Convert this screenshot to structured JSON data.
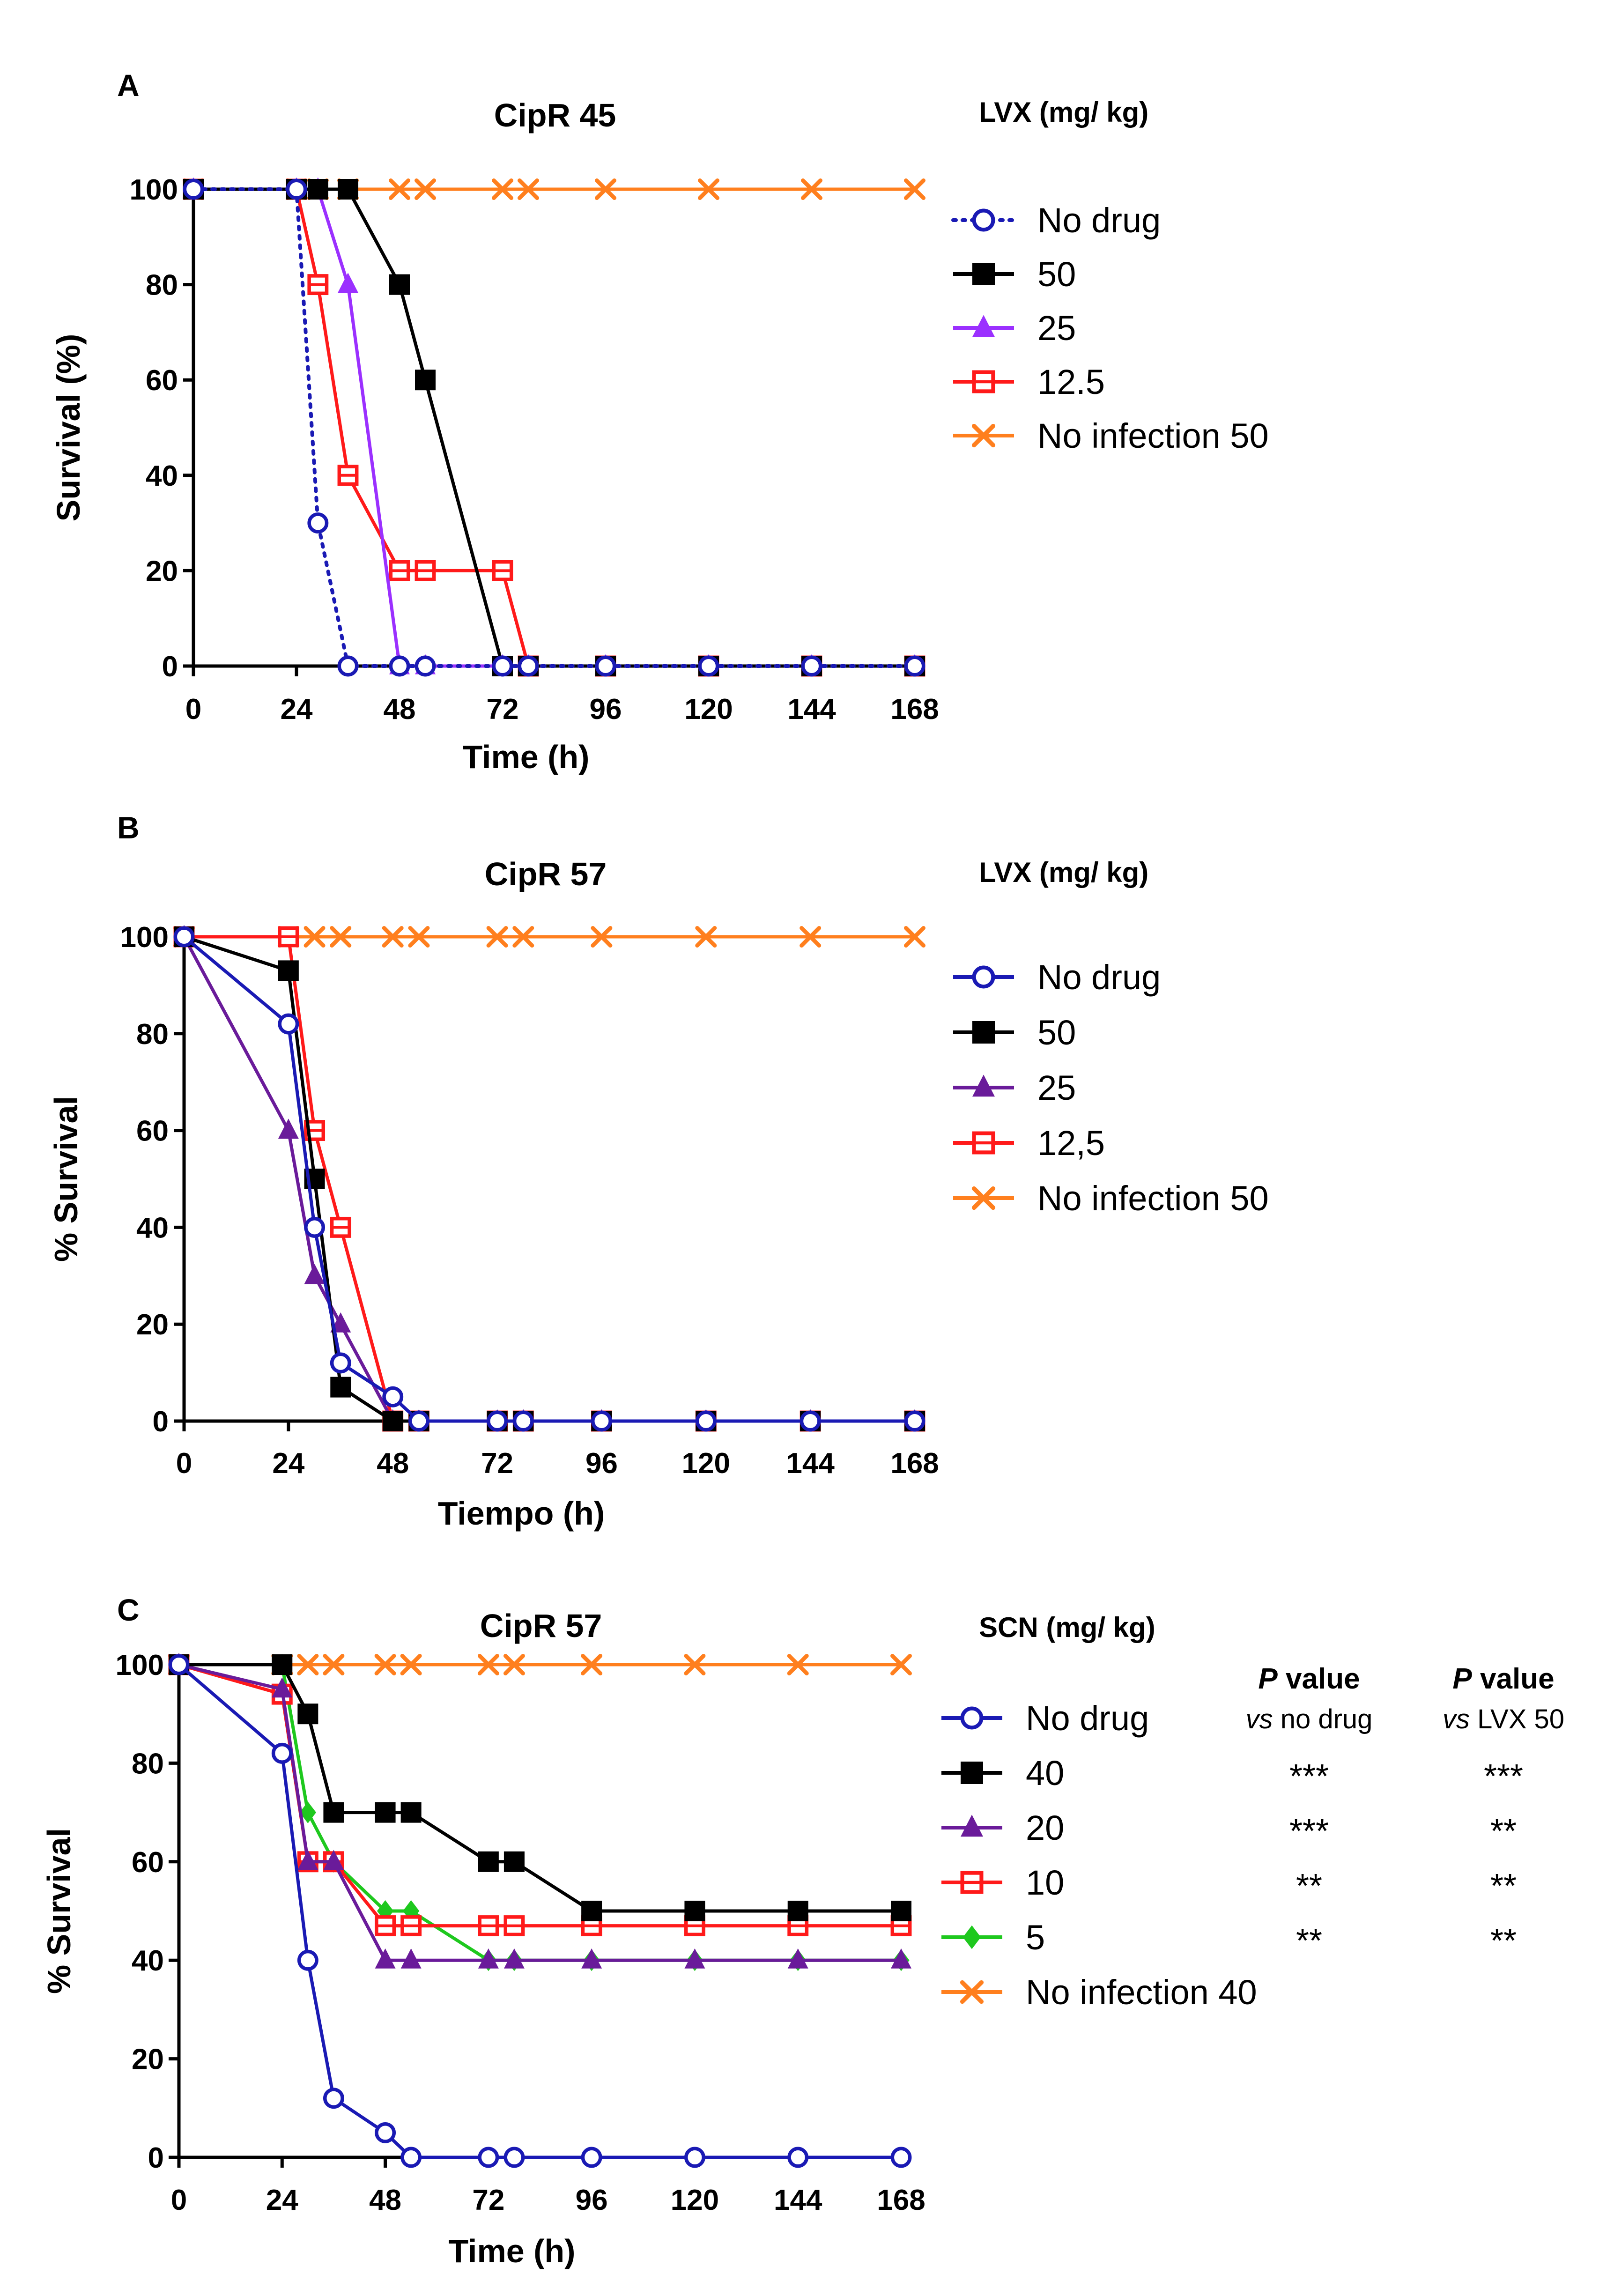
{
  "chart_data": [
    {
      "type": "line",
      "panel_label": "A",
      "title": "CipR 45",
      "xlabel": "Time (h)",
      "ylabel": "Survival (%)",
      "xlim": [
        0,
        168
      ],
      "ylim": [
        0,
        100
      ],
      "x_ticks": [
        0,
        24,
        48,
        72,
        96,
        120,
        144,
        168
      ],
      "y_ticks": [
        0,
        20,
        40,
        60,
        80,
        100
      ],
      "legend_title": "LVX (mg/ kg)",
      "legend_position": "right",
      "series": [
        {
          "name": "No drug",
          "color": "#1a1ab4",
          "marker": "circle-open",
          "line": "dotted",
          "points": [
            [
              0,
              100
            ],
            [
              24,
              100
            ],
            [
              29,
              30
            ],
            [
              36,
              0
            ],
            [
              48,
              0
            ],
            [
              54,
              0
            ],
            [
              72,
              0
            ],
            [
              78,
              0
            ],
            [
              96,
              0
            ],
            [
              120,
              0
            ],
            [
              144,
              0
            ],
            [
              168,
              0
            ]
          ]
        },
        {
          "name": "50",
          "color": "#000000",
          "marker": "square-filled",
          "line": "solid",
          "points": [
            [
              0,
              100
            ],
            [
              24,
              100
            ],
            [
              29,
              100
            ],
            [
              36,
              100
            ],
            [
              48,
              80
            ],
            [
              54,
              60
            ],
            [
              72,
              0
            ],
            [
              78,
              0
            ],
            [
              96,
              0
            ],
            [
              120,
              0
            ],
            [
              144,
              0
            ],
            [
              168,
              0
            ]
          ]
        },
        {
          "name": " 25",
          "color": "#9b30ff",
          "marker": "triangle-filled",
          "line": "solid",
          "points": [
            [
              0,
              100
            ],
            [
              24,
              100
            ],
            [
              29,
              100
            ],
            [
              36,
              80
            ],
            [
              48,
              0
            ],
            [
              54,
              0
            ],
            [
              72,
              0
            ],
            [
              78,
              0
            ],
            [
              96,
              0
            ],
            [
              120,
              0
            ],
            [
              144,
              0
            ],
            [
              168,
              0
            ]
          ]
        },
        {
          "name": "12.5",
          "color": "#ff1a1a",
          "marker": "square-open",
          "line": "solid",
          "points": [
            [
              0,
              100
            ],
            [
              24,
              100
            ],
            [
              29,
              80
            ],
            [
              36,
              40
            ],
            [
              48,
              20
            ],
            [
              54,
              20
            ],
            [
              72,
              20
            ],
            [
              78,
              0
            ],
            [
              96,
              0
            ],
            [
              120,
              0
            ],
            [
              144,
              0
            ],
            [
              168,
              0
            ]
          ]
        },
        {
          "name": "No infection 50",
          "color": "#ff7f1e",
          "marker": "x",
          "line": "solid",
          "points": [
            [
              0,
              100
            ],
            [
              24,
              100
            ],
            [
              29,
              100
            ],
            [
              36,
              100
            ],
            [
              48,
              100
            ],
            [
              54,
              100
            ],
            [
              72,
              100
            ],
            [
              78,
              100
            ],
            [
              96,
              100
            ],
            [
              120,
              100
            ],
            [
              144,
              100
            ],
            [
              168,
              100
            ]
          ]
        }
      ]
    },
    {
      "type": "line",
      "panel_label": "B",
      "title": "CipR 57",
      "xlabel": "Tiempo (h)",
      "ylabel": "% Survival",
      "xlim": [
        0,
        168
      ],
      "ylim": [
        0,
        100
      ],
      "x_ticks": [
        0,
        24,
        48,
        72,
        96,
        120,
        144,
        168
      ],
      "y_ticks": [
        0,
        20,
        40,
        60,
        80,
        100
      ],
      "legend_title": "LVX (mg/ kg)",
      "legend_position": "right",
      "series": [
        {
          "name": "No drug",
          "color": "#1a1ab4",
          "marker": "circle-open",
          "line": "solid",
          "points": [
            [
              0,
              100
            ],
            [
              24,
              82
            ],
            [
              30,
              40
            ],
            [
              36,
              12
            ],
            [
              48,
              5
            ],
            [
              54,
              0
            ],
            [
              72,
              0
            ],
            [
              78,
              0
            ],
            [
              96,
              0
            ],
            [
              120,
              0
            ],
            [
              144,
              0
            ],
            [
              168,
              0
            ]
          ]
        },
        {
          "name": "50",
          "color": "#000000",
          "marker": "square-filled",
          "line": "solid",
          "points": [
            [
              0,
              100
            ],
            [
              24,
              93
            ],
            [
              30,
              50
            ],
            [
              36,
              7
            ],
            [
              48,
              0
            ],
            [
              54,
              0
            ],
            [
              72,
              0
            ],
            [
              78,
              0
            ],
            [
              96,
              0
            ],
            [
              120,
              0
            ],
            [
              144,
              0
            ],
            [
              168,
              0
            ]
          ]
        },
        {
          "name": "25",
          "color": "#6a1b9a",
          "marker": "triangle-filled",
          "line": "solid",
          "points": [
            [
              0,
              100
            ],
            [
              24,
              60
            ],
            [
              30,
              30
            ],
            [
              36,
              20
            ],
            [
              48,
              0
            ],
            [
              54,
              0
            ],
            [
              72,
              0
            ],
            [
              78,
              0
            ],
            [
              96,
              0
            ],
            [
              120,
              0
            ],
            [
              144,
              0
            ],
            [
              168,
              0
            ]
          ]
        },
        {
          "name": "12,5",
          "color": "#ff1a1a",
          "marker": "square-open",
          "line": "solid",
          "points": [
            [
              0,
              100
            ],
            [
              24,
              100
            ],
            [
              30,
              60
            ],
            [
              36,
              40
            ],
            [
              48,
              0
            ],
            [
              54,
              0
            ],
            [
              72,
              0
            ],
            [
              78,
              0
            ],
            [
              96,
              0
            ],
            [
              120,
              0
            ],
            [
              144,
              0
            ],
            [
              168,
              0
            ]
          ]
        },
        {
          "name": "No infection 50",
          "color": "#ff7f1e",
          "marker": "x",
          "line": "solid",
          "points": [
            [
              0,
              100
            ],
            [
              24,
              100
            ],
            [
              30,
              100
            ],
            [
              36,
              100
            ],
            [
              48,
              100
            ],
            [
              54,
              100
            ],
            [
              72,
              100
            ],
            [
              78,
              100
            ],
            [
              96,
              100
            ],
            [
              120,
              100
            ],
            [
              144,
              100
            ],
            [
              168,
              100
            ]
          ]
        }
      ]
    },
    {
      "type": "line",
      "panel_label": "C",
      "title": "CipR 57",
      "xlabel": "Time (h)",
      "ylabel": "% Survival",
      "xlim": [
        0,
        168
      ],
      "ylim": [
        0,
        100
      ],
      "x_ticks": [
        0,
        24,
        48,
        72,
        96,
        120,
        144,
        168
      ],
      "y_ticks": [
        0,
        20,
        40,
        60,
        80,
        100
      ],
      "legend_title": "SCN (mg/ kg)",
      "legend_position": "right",
      "pvalue_headers": [
        {
          "p": "P",
          "word": " value",
          "sub_italic": "vs",
          "sub_rest": " no drug"
        },
        {
          "p": "P",
          "word": " value",
          "sub_italic": "vs",
          "sub_rest": " LVX 50"
        }
      ],
      "series": [
        {
          "name": "No drug",
          "color": "#1a1ab4",
          "marker": "circle-open",
          "line": "solid",
          "points": [
            [
              0,
              100
            ],
            [
              24,
              82
            ],
            [
              30,
              40
            ],
            [
              36,
              12
            ],
            [
              48,
              5
            ],
            [
              54,
              0
            ],
            [
              72,
              0
            ],
            [
              78,
              0
            ],
            [
              96,
              0
            ],
            [
              120,
              0
            ],
            [
              144,
              0
            ],
            [
              168,
              0
            ]
          ]
        },
        {
          "name": "40",
          "color": "#000000",
          "marker": "square-filled",
          "line": "solid",
          "p_vs_no_drug": "***",
          "p_vs_lvx50": "***",
          "points": [
            [
              0,
              100
            ],
            [
              24,
              100
            ],
            [
              30,
              90
            ],
            [
              36,
              70
            ],
            [
              48,
              70
            ],
            [
              54,
              70
            ],
            [
              72,
              60
            ],
            [
              78,
              60
            ],
            [
              96,
              50
            ],
            [
              120,
              50
            ],
            [
              144,
              50
            ],
            [
              168,
              50
            ]
          ]
        },
        {
          "name": "20",
          "color": "#6a1b9a",
          "marker": "triangle-filled",
          "line": "solid",
          "p_vs_no_drug": "***",
          "p_vs_lvx50": "**",
          "points": [
            [
              0,
              100
            ],
            [
              24,
              95
            ],
            [
              30,
              60
            ],
            [
              36,
              60
            ],
            [
              48,
              40
            ],
            [
              54,
              40
            ],
            [
              72,
              40
            ],
            [
              78,
              40
            ],
            [
              96,
              40
            ],
            [
              120,
              40
            ],
            [
              144,
              40
            ],
            [
              168,
              40
            ]
          ]
        },
        {
          "name": "10",
          "color": "#ff1a1a",
          "marker": "square-open",
          "line": "solid",
          "p_vs_no_drug": "**",
          "p_vs_lvx50": "**",
          "points": [
            [
              0,
              100
            ],
            [
              24,
              94
            ],
            [
              30,
              60
            ],
            [
              36,
              60
            ],
            [
              48,
              47
            ],
            [
              54,
              47
            ],
            [
              72,
              47
            ],
            [
              78,
              47
            ],
            [
              96,
              47
            ],
            [
              120,
              47
            ],
            [
              144,
              47
            ],
            [
              168,
              47
            ]
          ]
        },
        {
          "name": "5",
          "color": "#1ec81e",
          "marker": "diamond-filled",
          "line": "solid",
          "p_vs_no_drug": "**",
          "p_vs_lvx50": "**",
          "points": [
            [
              0,
              100
            ],
            [
              24,
              100
            ],
            [
              30,
              70
            ],
            [
              36,
              60
            ],
            [
              48,
              50
            ],
            [
              54,
              50
            ],
            [
              72,
              40
            ],
            [
              78,
              40
            ],
            [
              96,
              40
            ],
            [
              120,
              40
            ],
            [
              144,
              40
            ],
            [
              168,
              40
            ]
          ]
        },
        {
          "name": "No infection 40",
          "color": "#ff7f1e",
          "marker": "x",
          "line": "solid",
          "points": [
            [
              0,
              100
            ],
            [
              24,
              100
            ],
            [
              30,
              100
            ],
            [
              36,
              100
            ],
            [
              48,
              100
            ],
            [
              54,
              100
            ],
            [
              72,
              100
            ],
            [
              78,
              100
            ],
            [
              96,
              100
            ],
            [
              120,
              100
            ],
            [
              144,
              100
            ],
            [
              168,
              100
            ]
          ]
        }
      ]
    }
  ]
}
